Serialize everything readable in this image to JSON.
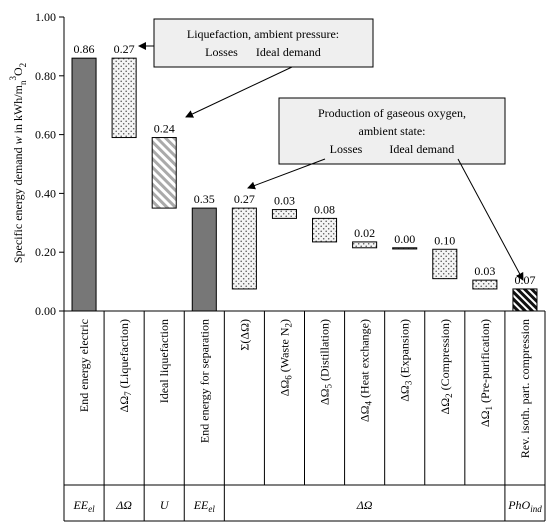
{
  "chart_data": {
    "type": "bar",
    "subtype": "waterfall",
    "ylabel": "Specific energy demand w in kWh/m_n^3_O2",
    "ylim": [
      0,
      1.0
    ],
    "yticks": [
      "0.00",
      "0.20",
      "0.40",
      "0.60",
      "0.80",
      "1.00"
    ],
    "grid": false,
    "categories": [
      "End energy electric",
      "ΔΩ_7 (Liquefaction)",
      "Ideal liquefaction",
      "End energy for separation",
      "Σ(ΔΩ)",
      "ΔΩ_6 (Waste N_2)",
      "ΔΩ_5 (Distillation)",
      "ΔΩ_4 (Heat exchange)",
      "ΔΩ_3 (Expansion)",
      "ΔΩ_2 (Compression)",
      "ΔΩ_1 (Pre-purification)",
      "Rev. isoth. part. compression"
    ],
    "bars": [
      {
        "label": "0.86",
        "bottom": 0.0,
        "top": 0.86,
        "style": "solid"
      },
      {
        "label": "0.27",
        "bottom": 0.59,
        "top": 0.86,
        "style": "dots"
      },
      {
        "label": "0.24",
        "bottom": 0.35,
        "top": 0.59,
        "style": "hatch"
      },
      {
        "label": "0.35",
        "bottom": 0.0,
        "top": 0.35,
        "style": "solid"
      },
      {
        "label": "0.27",
        "bottom": 0.075,
        "top": 0.35,
        "style": "dots"
      },
      {
        "label": "0.03",
        "bottom": 0.315,
        "top": 0.345,
        "style": "dots"
      },
      {
        "label": "0.08",
        "bottom": 0.235,
        "top": 0.315,
        "style": "dots"
      },
      {
        "label": "0.02",
        "bottom": 0.215,
        "top": 0.235,
        "style": "dots"
      },
      {
        "label": "0.00",
        "bottom": 0.211,
        "top": 0.215,
        "style": "dots"
      },
      {
        "label": "0.10",
        "bottom": 0.11,
        "top": 0.21,
        "style": "dots"
      },
      {
        "label": "0.03",
        "bottom": 0.075,
        "top": 0.105,
        "style": "dots"
      },
      {
        "label": "0.07",
        "bottom": 0.0,
        "top": 0.075,
        "style": "hatchdark"
      }
    ],
    "groups": [
      {
        "label": "EE_el",
        "from": 0,
        "to": 0
      },
      {
        "label": "ΔΩ",
        "from": 1,
        "to": 1
      },
      {
        "label": "U",
        "from": 2,
        "to": 2
      },
      {
        "label": "EE_el",
        "from": 3,
        "to": 3
      },
      {
        "label": "ΔΩ",
        "from": 4,
        "to": 10
      },
      {
        "label": "PhO_ind",
        "from": 11,
        "to": 11
      }
    ],
    "annotations": [
      {
        "lines": [
          "Liquefaction, ambient pressure:",
          "Losses      Ideal demand"
        ]
      },
      {
        "lines": [
          "Production of gaseous oxygen,",
          "ambient state:",
          "Losses         Ideal demand"
        ]
      }
    ],
    "colors": {
      "solid": "#777777",
      "dots": "#f0f0f0",
      "hatch": "#b0b0b0",
      "hatchdark": "#000000",
      "annotation_fill": "#efefef"
    }
  }
}
